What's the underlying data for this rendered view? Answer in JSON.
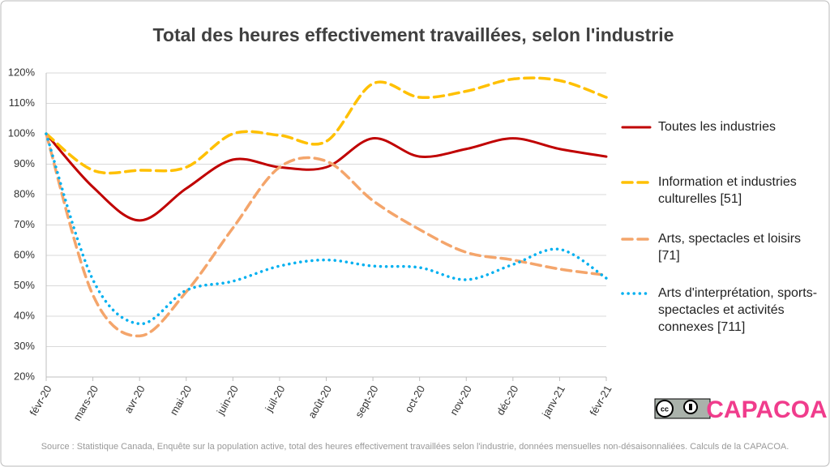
{
  "chart_data": {
    "type": "line",
    "title": "Total des heures effectivement travaillées, selon l'industrie",
    "categories": [
      "févr-20",
      "mars-20",
      "avr-20",
      "mai-20",
      "juin-20",
      "juil-20",
      "août-20",
      "sept-20",
      "oct-20",
      "nov-20",
      "déc-20",
      "janv-21",
      "févr-21"
    ],
    "series": [
      {
        "name": "Toutes les industries",
        "color": "#c00000",
        "style": "solid",
        "values": [
          100,
          82.5,
          71.5,
          82,
          91.5,
          89,
          89,
          98.5,
          92.5,
          95,
          98.5,
          95,
          92.5
        ]
      },
      {
        "name": "Information et industries culturelles [51]",
        "color": "#ffc000",
        "style": "dashed",
        "values": [
          100,
          88,
          88,
          89,
          100,
          99.5,
          97.5,
          116.5,
          112,
          114,
          118,
          117.5,
          112
        ]
      },
      {
        "name": "Arts, spectacles et loisirs [71]",
        "color": "#f4a56b",
        "style": "dashed",
        "values": [
          100,
          47,
          33.5,
          48,
          69,
          89,
          91,
          78,
          68.5,
          61,
          58.5,
          55.5,
          53.5
        ]
      },
      {
        "name": "Arts d'interprétation, sports-spectacles et activités connexes [711]",
        "color": "#00b0f0",
        "style": "dotted",
        "values": [
          100,
          52,
          37.5,
          48.5,
          51.5,
          56.5,
          58.5,
          56.5,
          56,
          52,
          57,
          62,
          52.5
        ]
      }
    ],
    "ylim": [
      20,
      120
    ],
    "yticks": [
      {
        "value": 20,
        "label": "20%"
      },
      {
        "value": 30,
        "label": "30%"
      },
      {
        "value": 40,
        "label": "40%"
      },
      {
        "value": 50,
        "label": "50%"
      },
      {
        "value": 60,
        "label": "60%"
      },
      {
        "value": 70,
        "label": "70%"
      },
      {
        "value": 80,
        "label": "80%"
      },
      {
        "value": 90,
        "label": "90%"
      },
      {
        "value": 100,
        "label": "100%"
      },
      {
        "value": 110,
        "label": "110%"
      },
      {
        "value": 120,
        "label": "120%"
      }
    ],
    "grid": true,
    "legend": "right",
    "source": "Source : Statistique Canada, Enquête sur la population active, total des heures effectivement travaillées selon l'industrie, données mensuelles non-désaisonnaliées. Calculs de la CAPACOA.",
    "logo": "CAPACOA"
  }
}
